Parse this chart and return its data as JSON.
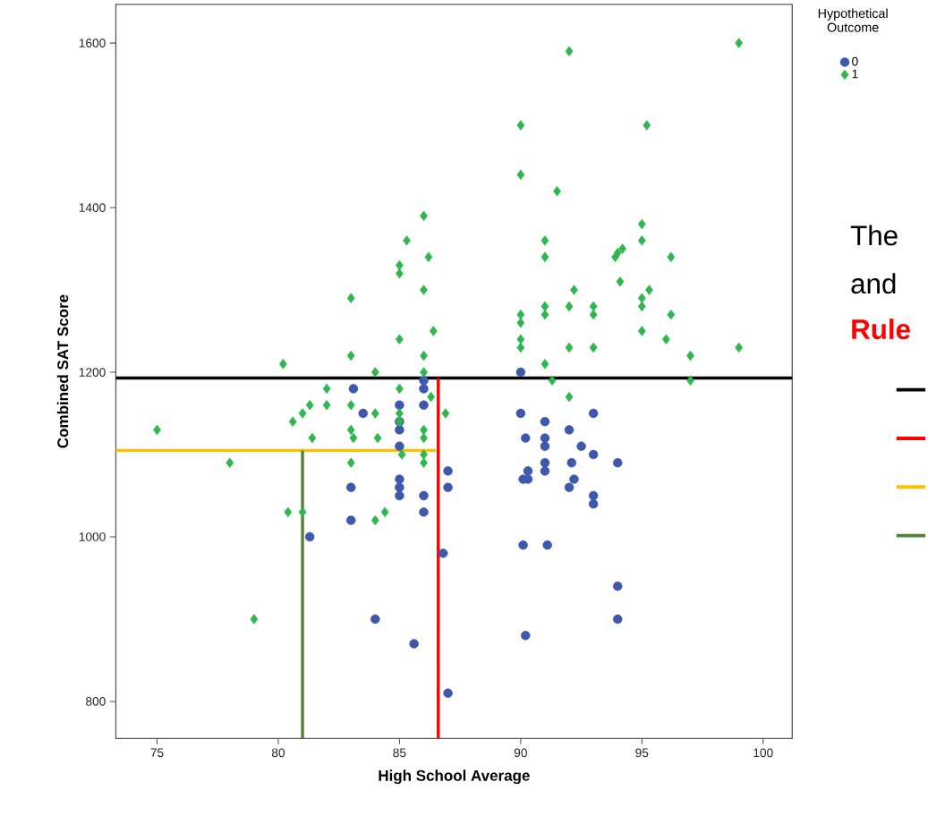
{
  "chart_data": {
    "type": "scatter",
    "xlabel": "High School Average",
    "ylabel": "Combined SAT Score",
    "legend_title": "Hypothetical Outcome",
    "xlim": [
      73.3,
      101.2
    ],
    "ylim": [
      755,
      1647
    ],
    "xticks": [
      75,
      80,
      85,
      90,
      95,
      100
    ],
    "yticks": [
      800,
      1000,
      1200,
      1400,
      1600
    ],
    "grid": false,
    "legend": "top right",
    "annotations": [
      "The",
      "and",
      "Rule"
    ],
    "series": [
      {
        "name": "0",
        "color": "#3e58ac",
        "marker": "circle",
        "x": [
          90,
          90,
          91,
          93,
          92,
          90.2,
          91,
          91,
          92.5,
          93,
          94,
          92.1,
          91,
          91,
          90.3,
          90.1,
          90.3,
          92.2,
          92,
          93,
          93,
          90.1,
          91.1,
          94,
          94,
          90.2,
          83.1,
          86,
          86,
          83.5,
          85,
          85,
          85,
          85,
          86,
          87,
          87,
          83,
          85,
          85,
          85,
          86,
          86,
          83,
          81.3,
          86.8,
          84,
          85.6,
          87
        ],
        "values": [
          1200,
          1150,
          1140,
          1150,
          1130,
          1120,
          1120,
          1110,
          1110,
          1100,
          1090,
          1090,
          1090,
          1080,
          1080,
          1070,
          1070,
          1070,
          1060,
          1050,
          1040,
          990,
          990,
          940,
          900,
          880,
          1180,
          1190,
          1180,
          1150,
          1160,
          1140,
          1130,
          1110,
          1160,
          1080,
          1060,
          1060,
          1070,
          1060,
          1050,
          1050,
          1030,
          1020,
          1000,
          980,
          900,
          870,
          810
        ]
      },
      {
        "name": "1",
        "color": "#2db84d",
        "marker": "diamond",
        "x": [
          75,
          78,
          79,
          80.2,
          80.4,
          81,
          80.6,
          81,
          81.3,
          82,
          82,
          81.4,
          83,
          83,
          83.1,
          83,
          84,
          84,
          84.1,
          84.4,
          84,
          85,
          85,
          85,
          85.1,
          86,
          86,
          86,
          86,
          86,
          86.3,
          86.9,
          86,
          85.3,
          86.2,
          85,
          85,
          86,
          83,
          86.4,
          85,
          83,
          86,
          92,
          99,
          90,
          95.2,
          90,
          91.5,
          95,
          91,
          95,
          94.2,
          94,
          93.9,
          91,
          96.2,
          94.1,
          92.2,
          95.3,
          95,
          95,
          90,
          90,
          91,
          91,
          92,
          93,
          93,
          96.2,
          90,
          90,
          92,
          93,
          95,
          96,
          97,
          99,
          91,
          91.3,
          92,
          97
        ],
        "values": [
          1130,
          1090,
          900,
          1210,
          1030,
          1030,
          1140,
          1150,
          1160,
          1180,
          1160,
          1120,
          1160,
          1130,
          1120,
          1090,
          1200,
          1150,
          1120,
          1030,
          1020,
          1180,
          1150,
          1140,
          1100,
          1200,
          1130,
          1120,
          1100,
          1090,
          1170,
          1150,
          1390,
          1360,
          1340,
          1330,
          1320,
          1300,
          1290,
          1250,
          1240,
          1220,
          1220,
          1590,
          1600,
          1500,
          1500,
          1440,
          1420,
          1380,
          1360,
          1360,
          1350,
          1345,
          1340,
          1340,
          1340,
          1310,
          1300,
          1300,
          1290,
          1280,
          1270,
          1260,
          1280,
          1270,
          1280,
          1280,
          1270,
          1270,
          1240,
          1230,
          1230,
          1230,
          1250,
          1240,
          1220,
          1230,
          1210,
          1190,
          1170,
          1190
        ]
      },
      {
        "type": "line",
        "color": "#000000",
        "x": [
          73.3,
          101.2
        ],
        "values": [
          1193,
          1193
        ]
      },
      {
        "type": "line",
        "color": "#ff0000",
        "x": [
          86.6,
          86.6
        ],
        "values": [
          755,
          1193
        ]
      },
      {
        "type": "line",
        "color": "#ffc000",
        "x": [
          73.3,
          86.5
        ],
        "values": [
          1105,
          1105
        ]
      },
      {
        "type": "line",
        "color": "#548235",
        "x": [
          81,
          81
        ],
        "values": [
          755,
          1105
        ]
      }
    ]
  }
}
